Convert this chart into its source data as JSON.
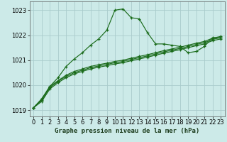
{
  "title": "Graphe pression niveau de la mer (hPa)",
  "background_color": "#cceae8",
  "grid_color": "#aacccc",
  "line_color": "#1a6b1a",
  "xlim": [
    -0.5,
    23.5
  ],
  "ylim": [
    1018.75,
    1023.35
  ],
  "yticks": [
    1019,
    1020,
    1021,
    1022,
    1023
  ],
  "xticks": [
    0,
    1,
    2,
    3,
    4,
    5,
    6,
    7,
    8,
    9,
    10,
    11,
    12,
    13,
    14,
    15,
    16,
    17,
    18,
    19,
    20,
    21,
    22,
    23
  ],
  "series": [
    [
      1019.1,
      1019.45,
      1019.95,
      1020.3,
      1020.75,
      1021.05,
      1021.3,
      1021.6,
      1021.85,
      1022.2,
      1023.0,
      1023.05,
      1022.7,
      1022.65,
      1022.1,
      1021.65,
      1021.65,
      1021.6,
      1021.55,
      1021.3,
      1021.35,
      1021.55,
      1021.9,
      1021.9
    ],
    [
      1019.1,
      1019.35,
      1019.85,
      1020.1,
      1020.3,
      1020.45,
      1020.55,
      1020.65,
      1020.72,
      1020.78,
      1020.85,
      1020.9,
      1020.98,
      1021.05,
      1021.12,
      1021.2,
      1021.28,
      1021.35,
      1021.42,
      1021.5,
      1021.58,
      1021.65,
      1021.78,
      1021.85
    ],
    [
      1019.1,
      1019.4,
      1019.9,
      1020.15,
      1020.35,
      1020.5,
      1020.6,
      1020.7,
      1020.77,
      1020.83,
      1020.9,
      1020.95,
      1021.03,
      1021.1,
      1021.17,
      1021.25,
      1021.33,
      1021.4,
      1021.47,
      1021.55,
      1021.63,
      1021.7,
      1021.83,
      1021.9
    ],
    [
      1019.1,
      1019.45,
      1019.95,
      1020.18,
      1020.4,
      1020.55,
      1020.65,
      1020.75,
      1020.82,
      1020.88,
      1020.95,
      1021.0,
      1021.08,
      1021.15,
      1021.22,
      1021.3,
      1021.38,
      1021.45,
      1021.52,
      1021.6,
      1021.68,
      1021.75,
      1021.88,
      1021.95
    ]
  ],
  "marker": "+",
  "marker_size": 3.5,
  "linewidth": 0.85,
  "tick_fontsize": 6,
  "xlabel_fontsize": 6.5
}
